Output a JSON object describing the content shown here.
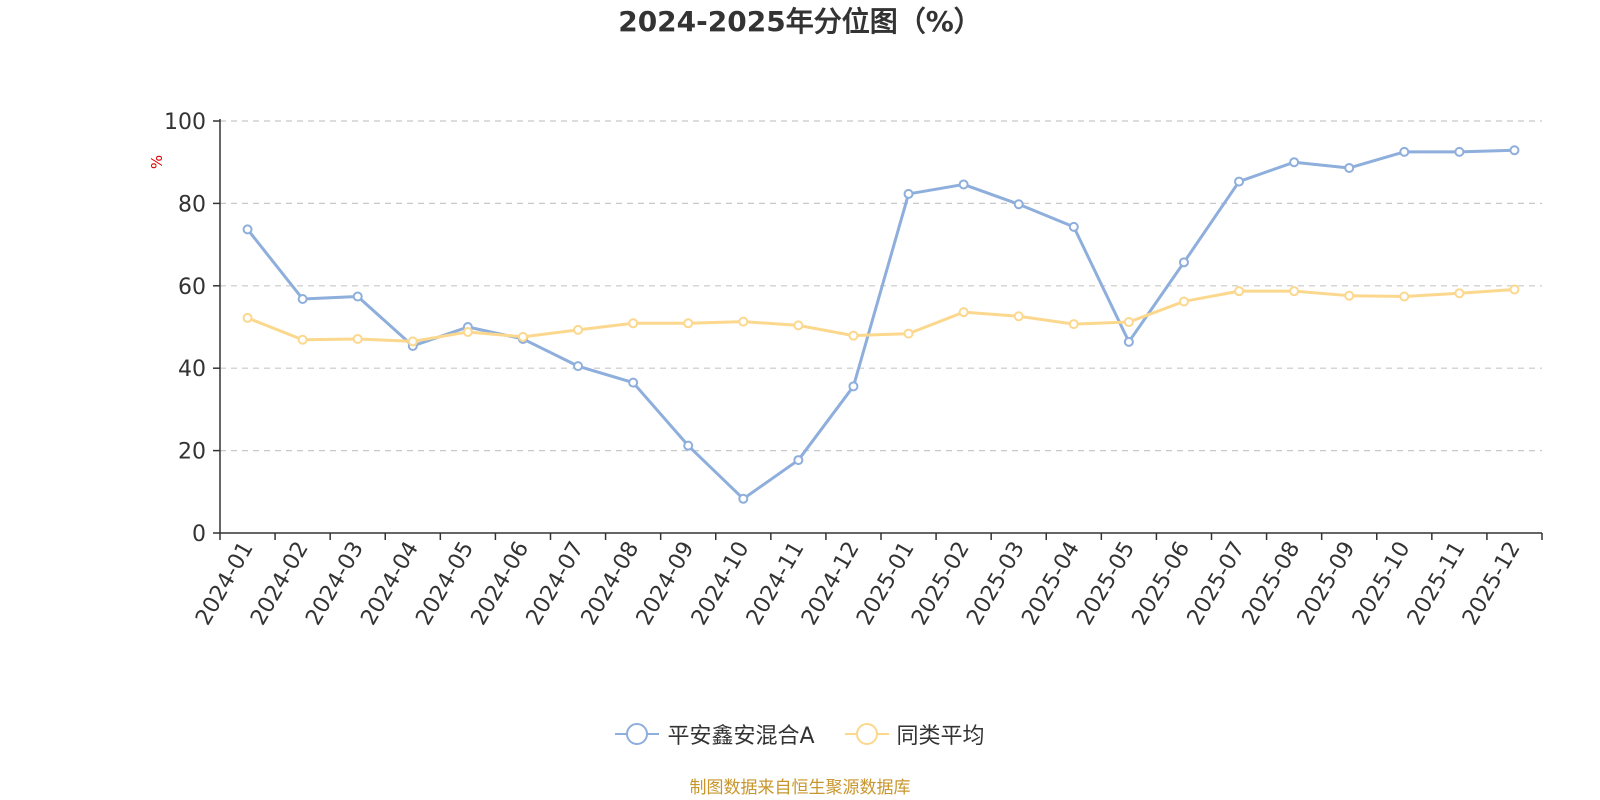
{
  "chart_data": {
    "type": "line",
    "title": "2024-2025年分位图（%）",
    "ylabel": "%",
    "xlabel": "",
    "ylim": [
      0,
      100
    ],
    "yticks": [
      0,
      20,
      40,
      60,
      80,
      100
    ],
    "grid": true,
    "legend_position": "bottom",
    "categories": [
      "2024-01",
      "2024-02",
      "2024-03",
      "2024-04",
      "2024-05",
      "2024-06",
      "2024-07",
      "2024-08",
      "2024-09",
      "2024-10",
      "2024-11",
      "2024-12",
      "2025-01",
      "2025-02",
      "2025-03",
      "2025-04",
      "2025-05",
      "2025-06",
      "2025-07",
      "2025-08",
      "2025-09",
      "2025-10",
      "2025-11",
      "2025-12"
    ],
    "series": [
      {
        "name": "平安鑫安混合A",
        "color": "#8eaedc",
        "values": [
          73.7,
          56.8,
          57.4,
          45.4,
          50.0,
          47.1,
          40.5,
          36.5,
          21.2,
          8.3,
          17.7,
          35.6,
          82.3,
          84.6,
          79.8,
          74.3,
          46.4,
          65.7,
          85.3,
          90.0,
          88.6,
          92.5,
          92.5,
          92.9
        ]
      },
      {
        "name": "同类平均",
        "color": "#fbd88e",
        "values": [
          52.2,
          46.9,
          47.1,
          46.5,
          48.8,
          47.6,
          49.3,
          50.9,
          50.9,
          51.3,
          50.4,
          47.9,
          48.4,
          53.6,
          52.6,
          50.7,
          51.2,
          56.2,
          58.7,
          58.7,
          57.6,
          57.4,
          58.2,
          59.1
        ]
      }
    ]
  },
  "footer": {
    "source": "制图数据来自恒生聚源数据库"
  }
}
